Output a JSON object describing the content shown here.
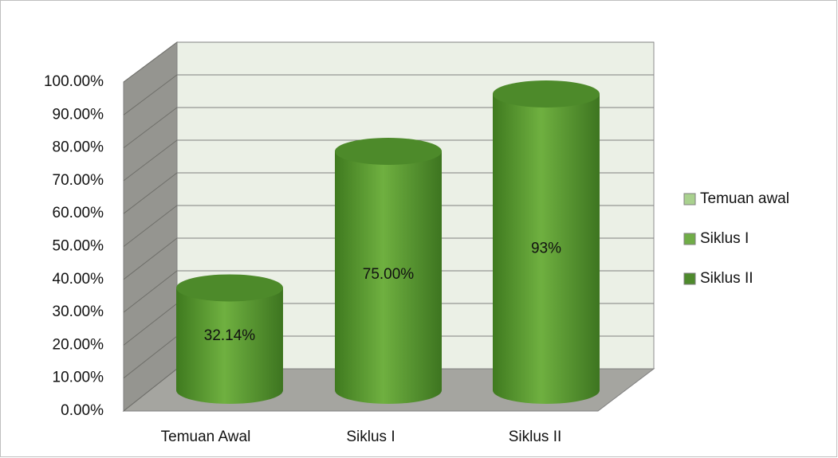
{
  "chart_data": {
    "type": "cylinder",
    "categories": [
      "Temuan Awal",
      "Siklus I",
      "Siklus II"
    ],
    "values": [
      32.14,
      75,
      93
    ],
    "value_labels": [
      "32.14%",
      "75.00%",
      "93%"
    ],
    "color": "#5c9e34",
    "ylim": [
      0,
      100
    ],
    "yticks": [
      {
        "value": 0,
        "label": "0.00%"
      },
      {
        "value": 10,
        "label": "10.00%"
      },
      {
        "value": 20,
        "label": "20.00%"
      },
      {
        "value": 30,
        "label": "30.00%"
      },
      {
        "value": 40,
        "label": "40.00%"
      },
      {
        "value": 50,
        "label": "50.00%"
      },
      {
        "value": 60,
        "label": "60.00%"
      },
      {
        "value": 70,
        "label": "70.00%"
      },
      {
        "value": 80,
        "label": "80.00%"
      },
      {
        "value": 90,
        "label": "90.00%"
      },
      {
        "value": 100,
        "label": "100.00%"
      }
    ],
    "grid": true,
    "legend": [
      {
        "name": "Temuan awal",
        "color": "#a9d18e"
      },
      {
        "name": "Siklus I",
        "color": "#70ad47"
      },
      {
        "name": "Siklus II",
        "color": "#4e8a2c"
      }
    ],
    "legend_position": "right"
  }
}
